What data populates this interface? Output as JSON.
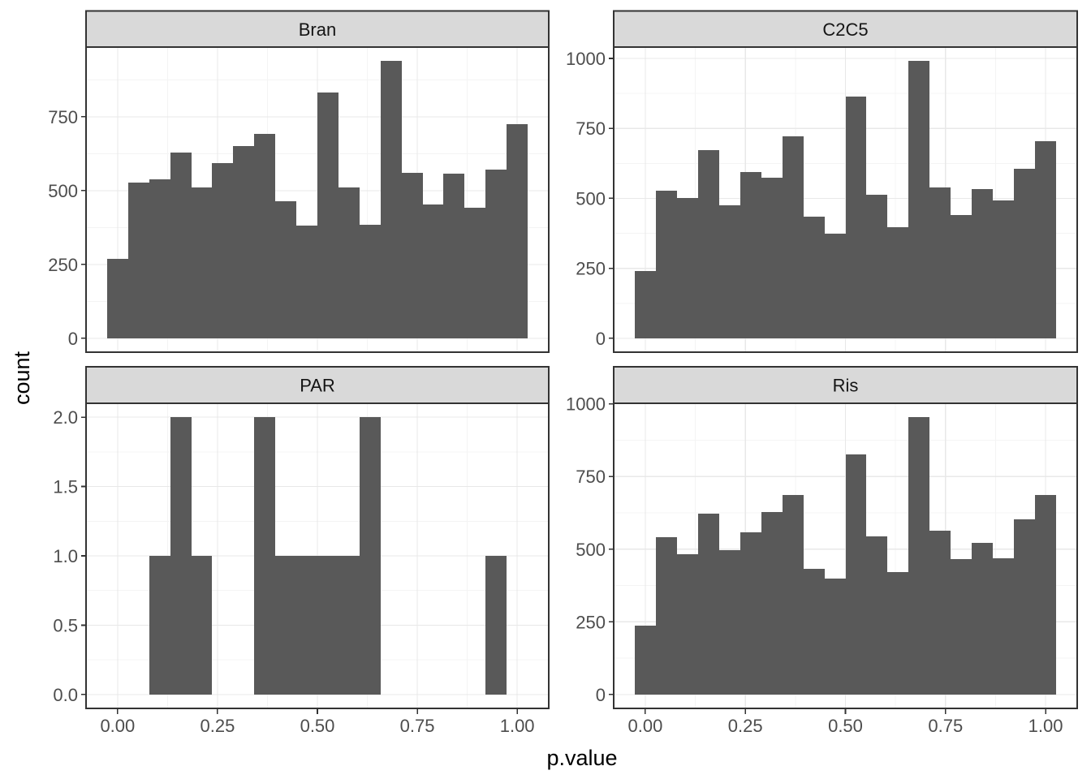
{
  "figure": {
    "x_axis_title": "p.value",
    "y_axis_title": "count"
  },
  "style": {
    "bar_fill": "#595959",
    "strip_bg": "#d9d9d9",
    "panel_border": "#333333",
    "tick_color": "#333333",
    "grid_major": "#e8e8e8",
    "grid_minor": "#f4f4f4",
    "axis_text_color": "#4d4d4d",
    "title_color": "#000000",
    "background": "#ffffff"
  },
  "chart_data": {
    "type": "bar",
    "subtype": "faceted-histogram",
    "title": "",
    "xlabel": "p.value",
    "ylabel": "count",
    "facet_variable_values": [
      "Bran",
      "C2C5",
      "PAR",
      "Ris"
    ],
    "grid": "on",
    "legend": "none",
    "bin_start": -0.026316,
    "bin_width": 0.052632,
    "x_domain": [
      -0.078947,
      1.078947
    ],
    "x_ticks": [
      {
        "v": 0.0,
        "label": "0.00"
      },
      {
        "v": 0.25,
        "label": "0.25"
      },
      {
        "v": 0.5,
        "label": "0.50"
      },
      {
        "v": 0.75,
        "label": "0.75"
      },
      {
        "v": 1.0,
        "label": "1.00"
      }
    ],
    "x_minor": [
      0.125,
      0.375,
      0.625,
      0.875
    ],
    "facets": [
      {
        "title": "Bran",
        "y_max": 939,
        "y_ticks": [
          {
            "v": 0,
            "label": "0"
          },
          {
            "v": 250,
            "label": "250"
          },
          {
            "v": 500,
            "label": "500"
          },
          {
            "v": 750,
            "label": "750"
          }
        ],
        "y_minor": [
          125,
          375,
          625,
          875
        ],
        "counts": [
          270,
          527,
          539,
          630,
          511,
          594,
          652,
          692,
          463,
          381,
          831,
          511,
          384,
          939,
          559,
          454,
          558,
          443,
          571,
          726
        ]
      },
      {
        "title": "C2C5",
        "y_max": 991,
        "y_ticks": [
          {
            "v": 0,
            "label": "0"
          },
          {
            "v": 250,
            "label": "250"
          },
          {
            "v": 500,
            "label": "500"
          },
          {
            "v": 750,
            "label": "750"
          },
          {
            "v": 1000,
            "label": "1000"
          }
        ],
        "y_minor": [
          125,
          375,
          625,
          875
        ],
        "counts": [
          240,
          528,
          500,
          672,
          474,
          593,
          574,
          721,
          436,
          374,
          864,
          514,
          398,
          991,
          539,
          441,
          534,
          494,
          606,
          705
        ]
      },
      {
        "title": "PAR",
        "y_max": 2,
        "y_ticks": [
          {
            "v": 0,
            "label": "0.0"
          },
          {
            "v": 0.5,
            "label": "0.5"
          },
          {
            "v": 1,
            "label": "1.0"
          },
          {
            "v": 1.5,
            "label": "1.5"
          },
          {
            "v": 2,
            "label": "2.0"
          }
        ],
        "y_minor": [
          0.25,
          0.75,
          1.25,
          1.75
        ],
        "counts": [
          0,
          0,
          1,
          2,
          1,
          0,
          0,
          2,
          1,
          1,
          1,
          1,
          2,
          0,
          0,
          0,
          0,
          0,
          1,
          0
        ]
      },
      {
        "title": "Ris",
        "y_max": 954,
        "y_ticks": [
          {
            "v": 0,
            "label": "0"
          },
          {
            "v": 250,
            "label": "250"
          },
          {
            "v": 500,
            "label": "500"
          },
          {
            "v": 750,
            "label": "750"
          },
          {
            "v": 1000,
            "label": "1000"
          }
        ],
        "y_minor": [
          125,
          375,
          625,
          875
        ],
        "counts": [
          238,
          541,
          482,
          621,
          496,
          557,
          629,
          686,
          433,
          399,
          826,
          543,
          422,
          954,
          564,
          466,
          523,
          468,
          603,
          686
        ]
      }
    ]
  }
}
